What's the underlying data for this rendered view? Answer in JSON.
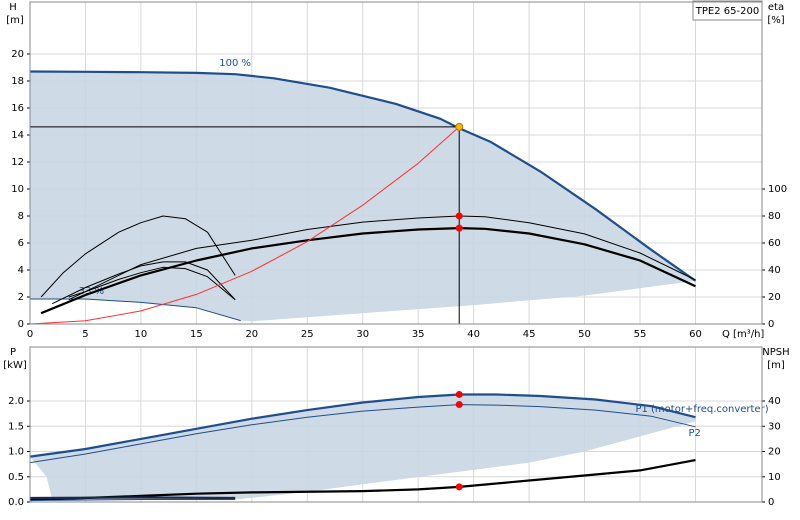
{
  "chart_data": [
    {
      "type": "line",
      "title": "TPE2 65-200",
      "ylabel": "H",
      "yunit": "[m]",
      "y2label": "eta",
      "y2unit": "[%]",
      "xlabel": "Q [m³/h]",
      "xlim": [
        0,
        66
      ],
      "xticks": [
        0,
        5,
        10,
        15,
        20,
        25,
        30,
        35,
        40,
        45,
        50,
        55,
        60
      ],
      "ylim": [
        0,
        23.85
      ],
      "yticks": [
        0,
        2,
        4,
        6,
        8,
        10,
        12,
        14,
        16,
        18,
        20
      ],
      "y2lim": [
        0,
        238.5
      ],
      "y2ticks": [
        0,
        20,
        40,
        60,
        80,
        100
      ],
      "grid": true,
      "xtick_labels": true,
      "series": [
        {
          "style": "area",
          "color": "#c9d6e2",
          "x": [
            0,
            5,
            10,
            15,
            18.5,
            22,
            27,
            33,
            37,
            38.7,
            41.5,
            46,
            51,
            56,
            60,
            50,
            40,
            30,
            20,
            19,
            15,
            10,
            5,
            0
          ],
          "values": [
            18.7,
            18.68,
            18.65,
            18.6,
            18.5,
            18.2,
            17.5,
            16.3,
            15.2,
            14.5,
            13.5,
            11.3,
            8.5,
            5.5,
            3.2,
            2.1,
            1.4,
            0.8,
            0.2,
            0.25,
            1.2,
            1.6,
            1.85,
            1.85
          ]
        },
        {
          "style": "thick",
          "name": "100 %",
          "color": "#1f4e8c",
          "x": [
            0,
            5,
            10,
            15,
            18.5,
            22,
            27,
            33,
            37,
            38.7,
            41.5,
            46,
            51,
            56,
            60
          ],
          "values": [
            18.7,
            18.68,
            18.65,
            18.6,
            18.5,
            18.2,
            17.5,
            16.3,
            15.2,
            14.5,
            13.5,
            11.3,
            8.5,
            5.5,
            3.2
          ]
        },
        {
          "style": "thin",
          "name": "33 %",
          "color": "#1f4e8c",
          "x": [
            0,
            5,
            10,
            15,
            19
          ],
          "values": [
            1.85,
            1.85,
            1.6,
            1.2,
            0.25
          ]
        },
        {
          "style": "thin",
          "color": "#000000",
          "axis": "y2",
          "x": [
            3.5,
            10,
            15,
            20,
            25,
            30,
            35,
            38.7,
            41,
            45,
            50,
            55,
            60
          ],
          "values": [
            18,
            44,
            56,
            62,
            70,
            75.5,
            78.5,
            80,
            79.5,
            75,
            66.7,
            52.6,
            32.6
          ]
        },
        {
          "style": "thick",
          "color": "#000000",
          "axis": "y2",
          "x": [
            1,
            5,
            10,
            15,
            20,
            25,
            30,
            35,
            38.7,
            41,
            45,
            50,
            55,
            60
          ],
          "values": [
            8,
            21.5,
            36,
            47,
            56,
            62,
            67,
            70,
            71,
            70.5,
            67,
            59,
            47,
            28
          ]
        },
        {
          "style": "thin",
          "color": "#000000",
          "axis": "y2",
          "x": [
            1,
            3,
            5,
            8,
            10,
            12,
            14,
            16,
            18.5
          ],
          "values": [
            20,
            38,
            52,
            68,
            75,
            80,
            78,
            68,
            36
          ]
        },
        {
          "style": "thin",
          "color": "#000000",
          "axis": "y2",
          "x": [
            2,
            5,
            8,
            10,
            12,
            14,
            16,
            18.5
          ],
          "values": [
            15,
            27,
            37,
            43,
            46,
            46,
            40,
            18
          ]
        },
        {
          "style": "thin",
          "color": "#000000",
          "axis": "y2",
          "x": [
            3.5,
            5,
            8,
            10,
            12,
            14,
            16,
            18.5
          ],
          "values": [
            20,
            24,
            33,
            38,
            42,
            41,
            35,
            18
          ]
        },
        {
          "style": "thin",
          "color": "#ff3030",
          "x": [
            0,
            5,
            10,
            15,
            20,
            25,
            30,
            35,
            38.7
          ],
          "values": [
            0,
            0.24,
            0.97,
            2.19,
            3.9,
            6.1,
            8.8,
            11.9,
            14.6
          ]
        },
        {
          "style": "point",
          "color": "#f5b800",
          "crosshair": true,
          "x": [
            38.7
          ],
          "values": [
            14.6
          ]
        },
        {
          "style": "point",
          "color": "#ff0000",
          "axis": "y2",
          "x": [
            38.7,
            38.7
          ],
          "values": [
            80,
            71
          ]
        }
      ]
    },
    {
      "type": "line",
      "ylabel": "P",
      "yunit": "[kW]",
      "y2label": "NPSH",
      "y2unit": "[m]",
      "xlim": [
        0,
        66
      ],
      "xticks": [
        0,
        5,
        10,
        15,
        20,
        25,
        30,
        35,
        40,
        45,
        50,
        55,
        60
      ],
      "ylim": [
        0,
        3.07
      ],
      "yticks": [
        {
          "value": 0,
          "label": "0.0"
        },
        0.5,
        {
          "value": 1,
          "label": "1.0"
        },
        1.5,
        {
          "value": 2,
          "label": "2.0"
        }
      ],
      "y2lim": [
        0,
        61.4
      ],
      "y2ticks": [
        0,
        10,
        20,
        30,
        40
      ],
      "grid": true,
      "xtick_labels": false,
      "series": [
        {
          "style": "area",
          "color": "#c9d6e2",
          "x": [
            0,
            5,
            10,
            15,
            20,
            25,
            30,
            35,
            38.7,
            42,
            46,
            51,
            56,
            60,
            60,
            55,
            50,
            45,
            38.7,
            30,
            25,
            19,
            10,
            2,
            1.5,
            0
          ],
          "values": [
            0.9,
            1.05,
            1.25,
            1.45,
            1.65,
            1.82,
            1.97,
            2.08,
            2.13,
            2.13,
            2.1,
            2.03,
            1.9,
            1.68,
            1.6,
            1.3,
            1.0,
            0.78,
            0.6,
            0.35,
            0.2,
            0.06,
            0.05,
            0.05,
            0.5,
            0.9
          ]
        },
        {
          "style": "thick",
          "name": "P1 (motor+freq.converter)",
          "color": "#1f4e8c",
          "x": [
            0,
            5,
            10,
            15,
            20,
            25,
            30,
            35,
            38.7,
            42,
            46,
            51,
            56,
            60
          ],
          "values": [
            0.9,
            1.05,
            1.25,
            1.45,
            1.65,
            1.82,
            1.97,
            2.08,
            2.13,
            2.13,
            2.1,
            2.03,
            1.9,
            1.68
          ]
        },
        {
          "style": "thin",
          "name": "P2",
          "color": "#1f4e8c",
          "x": [
            0,
            5,
            10,
            15,
            20,
            25,
            30,
            35,
            38.7,
            42,
            46,
            51,
            56,
            60
          ],
          "values": [
            0.78,
            0.95,
            1.15,
            1.35,
            1.53,
            1.68,
            1.8,
            1.88,
            1.93,
            1.92,
            1.89,
            1.82,
            1.7,
            1.49
          ]
        },
        {
          "style": "thick",
          "color": "#000000",
          "axis": "y2",
          "x": [
            0,
            10,
            15,
            20,
            30,
            35,
            38.7,
            45,
            50,
            55,
            60
          ],
          "values": [
            0.8,
            2.4,
            3.3,
            3.8,
            4.3,
            5,
            6,
            8.5,
            10.5,
            12.5,
            16.6
          ]
        },
        {
          "style": "thick",
          "color": "#1a2a4a",
          "x": [
            0,
            10,
            18.5
          ],
          "values": [
            0.08,
            0.09,
            0.08
          ]
        },
        {
          "style": "thin",
          "color": "#1f4e8c",
          "x": [
            0,
            10,
            18.5
          ],
          "values": [
            0.03,
            0.05,
            0.05
          ]
        },
        {
          "style": "point",
          "color": "#ff0000",
          "x": [
            38.7,
            38.7
          ],
          "values": [
            2.13,
            1.93
          ]
        },
        {
          "style": "point",
          "color": "#ff0000",
          "axis": "y2",
          "x": [
            38.7
          ],
          "values": [
            6
          ]
        }
      ]
    }
  ]
}
